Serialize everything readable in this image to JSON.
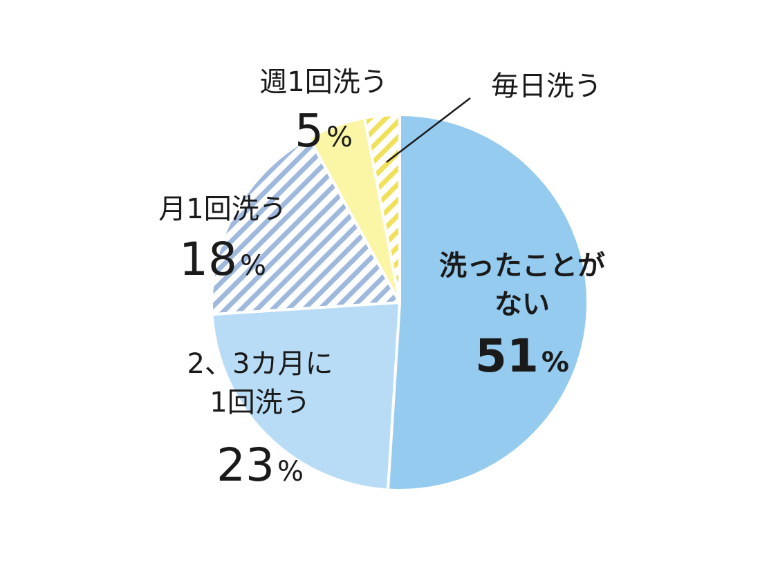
{
  "chart_data": {
    "type": "pie",
    "start_angle_deg": 0,
    "direction": "clockwise",
    "slices": [
      {
        "lines": [
          "洗ったことが",
          "ない"
        ],
        "value": 51,
        "pct_text": "51",
        "color": "#95cbef",
        "pattern": "none"
      },
      {
        "lines": [
          "2、3カ月に",
          "1回洗う"
        ],
        "value": 23,
        "pct_text": "23",
        "color": "#b8dcf5",
        "pattern": "none"
      },
      {
        "lines": [
          "月1回洗う"
        ],
        "value": 18,
        "pct_text": "18",
        "color": "#9fb8dd",
        "pattern": "stripe"
      },
      {
        "lines": [
          "週1回洗う"
        ],
        "value": 5,
        "pct_text": "5",
        "color": "#fbf5a6",
        "pattern": "none"
      },
      {
        "lines": [
          "毎日洗う"
        ],
        "value": 3,
        "pct_text": "",
        "color": "#f1e15a",
        "pattern": "stripe"
      }
    ],
    "percent_sign": "%",
    "colors": {
      "stripe_bg": "#ffffff",
      "separator": "#ffffff",
      "text": "#1a1a1a",
      "leader": "#1a1a1a"
    }
  }
}
